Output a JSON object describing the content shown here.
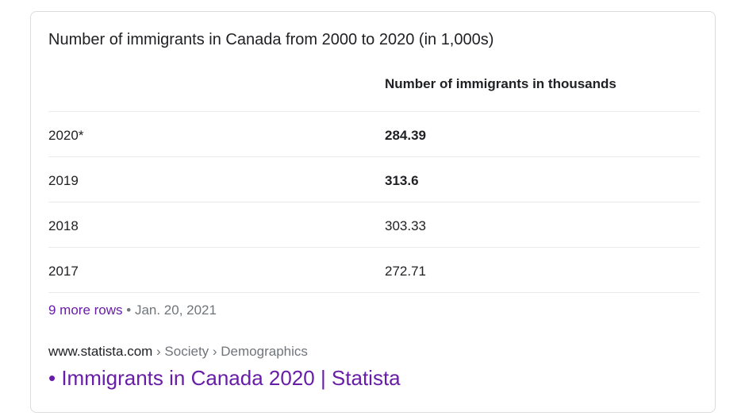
{
  "snippet": {
    "caption": "Number of immigrants in Canada from 2000 to 2020 (in 1,000s)",
    "columns": [
      "",
      "Number of immigrants in thousands"
    ],
    "rows": [
      {
        "year": "2020*",
        "value": "284.39",
        "bold": true
      },
      {
        "year": "2019",
        "value": "313.6",
        "bold": true
      },
      {
        "year": "2018",
        "value": "303.33",
        "bold": false
      },
      {
        "year": "2017",
        "value": "272.71",
        "bold": false
      }
    ],
    "more_rows": "9 more rows",
    "separator": " • ",
    "date": "Jan. 20, 2021"
  },
  "source": {
    "site": "www.statista.com",
    "breadcrumb": " › Society › Demographics",
    "result_title": "• Immigrants in Canada 2020 | Statista"
  },
  "colors": {
    "link_visited": "#681da8",
    "text": "#202124",
    "muted": "#70757a",
    "divider": "#e8eaed"
  }
}
